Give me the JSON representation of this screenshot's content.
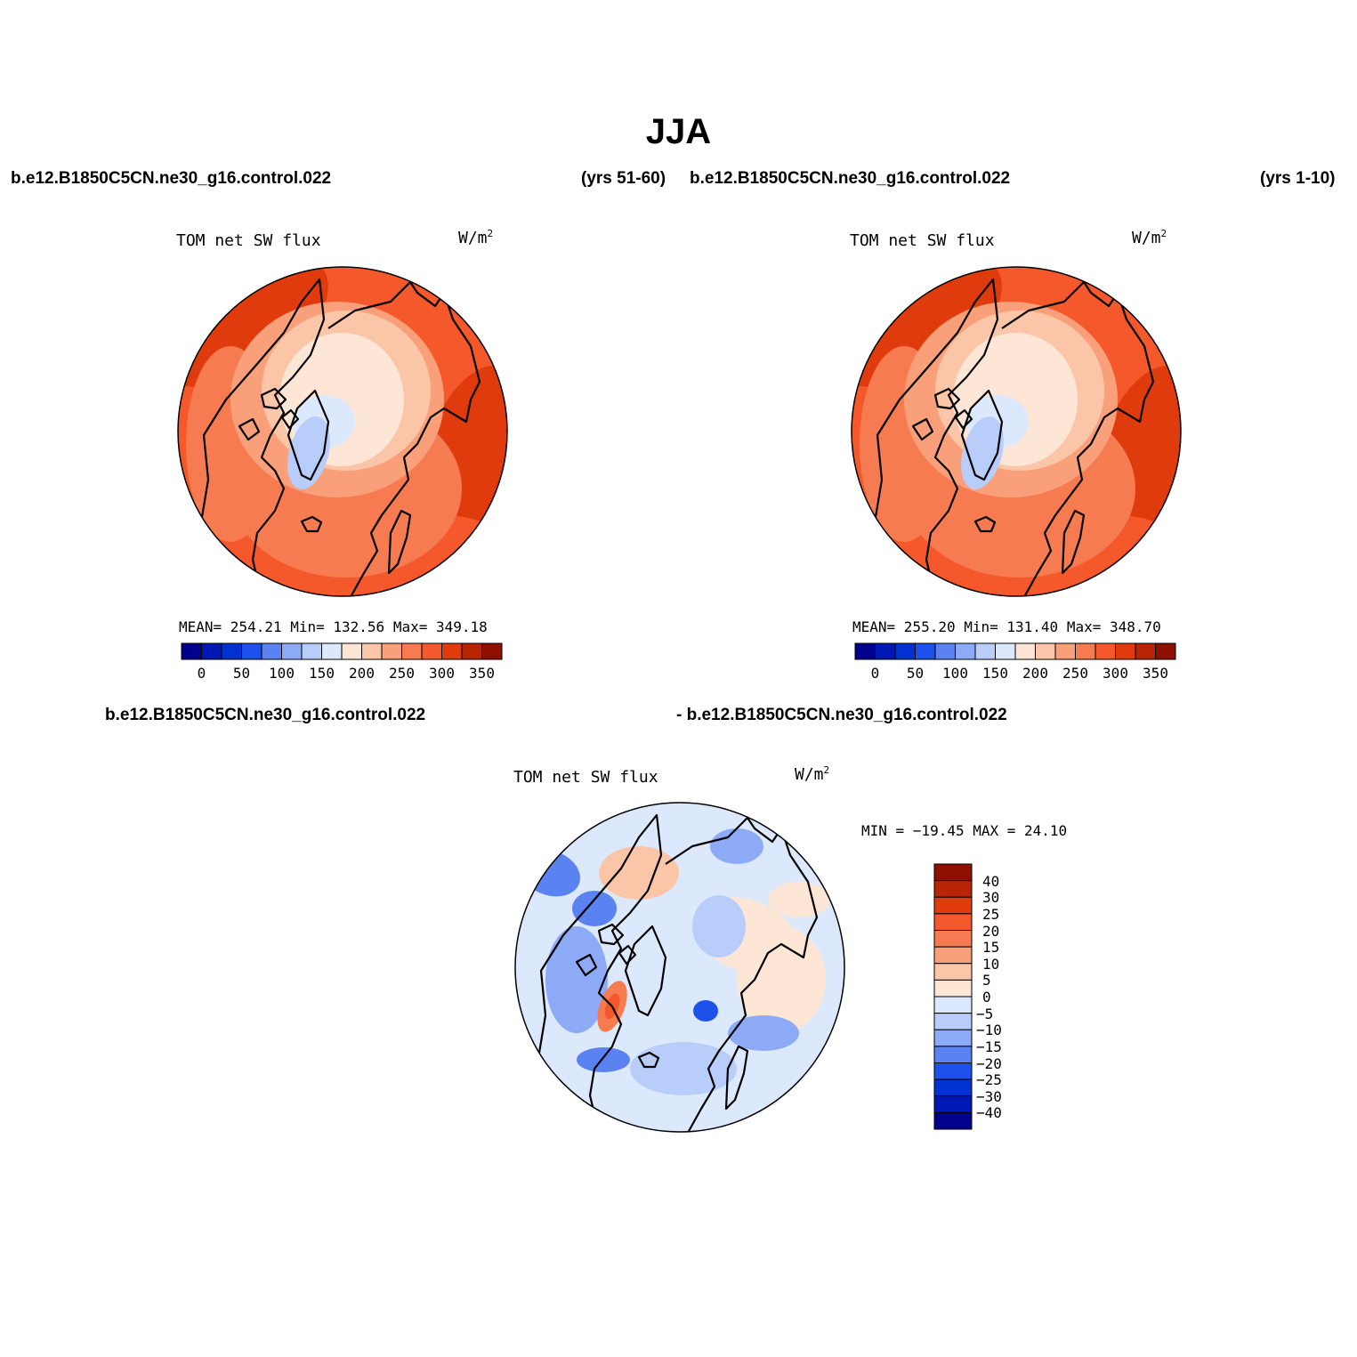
{
  "figure": {
    "title": "JJA",
    "case_name": "b.e12.B1850C5CN.ne30_g16.control.022"
  },
  "panels": [
    {
      "case": "b.e12.B1850C5CN.ne30_g16.control.022",
      "period": "(yrs 51-60)",
      "title": "TOM net SW flux",
      "units": "W/m",
      "units_exp": "2",
      "stats": "MEAN= 254.21   Min= 132.56   Max= 349.18"
    },
    {
      "case": "b.e12.B1850C5CN.ne30_g16.control.022",
      "period": "(yrs 1-10)",
      "title": "TOM net SW flux",
      "units": "W/m",
      "units_exp": "2",
      "stats": "MEAN= 255.20   Min= 131.40   Max= 348.70"
    },
    {
      "case_left": "b.e12.B1850C5CN.ne30_g16.control.022",
      "case_right": "- b.e12.B1850C5CN.ne30_g16.control.022",
      "title": "TOM net SW flux",
      "units": "W/m",
      "units_exp": "2",
      "stats": "MIN = −19.45 MAX =  24.10"
    }
  ],
  "colorbar_abs": {
    "colors": [
      "#00008c",
      "#0019b4",
      "#0032d2",
      "#1e50eb",
      "#5a82f0",
      "#8caaf5",
      "#b9cdfa",
      "#dce9fc",
      "#fde6d6",
      "#fbc5a8",
      "#f9a07a",
      "#f77b50",
      "#f5582a",
      "#e03b0c",
      "#b82505",
      "#8c0f00"
    ],
    "labels": [
      "0",
      "50",
      "100",
      "150",
      "200",
      "250",
      "300",
      "350"
    ]
  },
  "colorbar_diff": {
    "colors": [
      "#8c0f00",
      "#b82505",
      "#e03b0c",
      "#f5582a",
      "#f77b50",
      "#f9a07a",
      "#fbc5a8",
      "#fde6d6",
      "#dce9fc",
      "#b9cdfa",
      "#8caaf5",
      "#5a82f0",
      "#1e50eb",
      "#0032d2",
      "#0019b4",
      "#00008c"
    ],
    "labels": [
      "40",
      "30",
      "25",
      "20",
      "15",
      "10",
      "5",
      "0",
      "−5",
      "−10",
      "−15",
      "−20",
      "−25",
      "−30",
      "−40"
    ]
  }
}
